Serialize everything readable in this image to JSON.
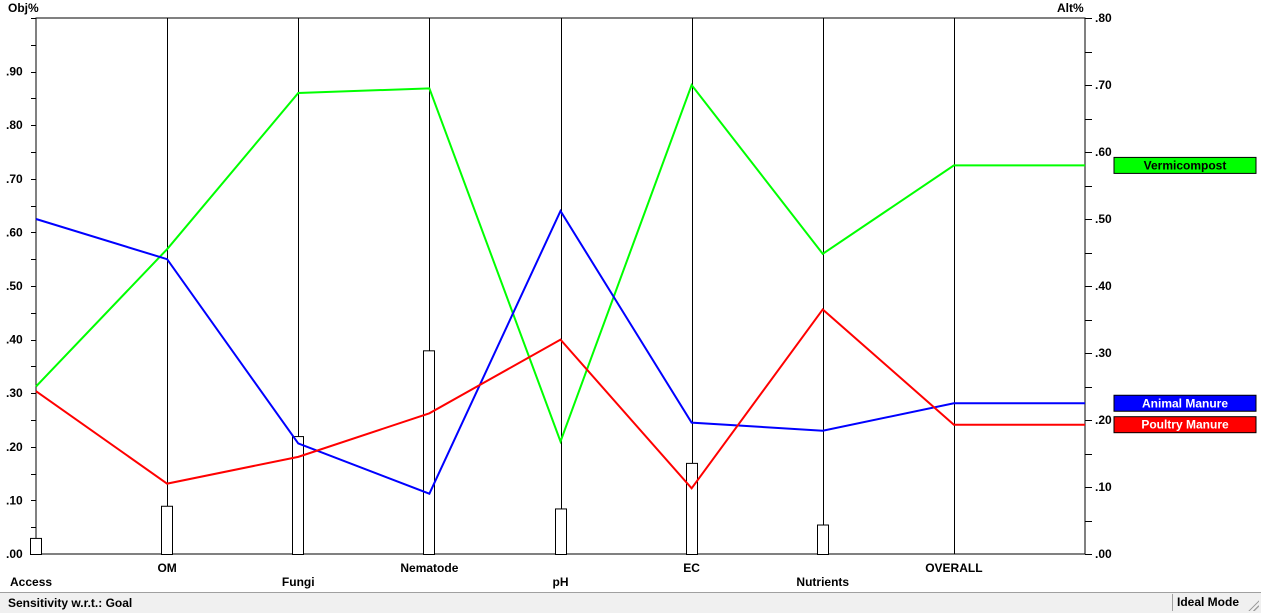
{
  "chart_data": {
    "type": "line",
    "left_axis_label": "Obj%",
    "right_axis_label": "Alt%",
    "left_ticks": [
      ".00",
      ".10",
      ".20",
      ".30",
      ".40",
      ".50",
      ".60",
      ".70",
      ".80",
      ".90"
    ],
    "right_ticks": [
      ".00",
      ".10",
      ".20",
      ".30",
      ".40",
      ".50",
      ".60",
      ".70",
      ".80"
    ],
    "left_ylim": [
      0,
      1.0
    ],
    "right_ylim": [
      0,
      0.8
    ],
    "categories": [
      "Access",
      "OM",
      "Fungi",
      "Nematode",
      "pH",
      "EC",
      "Nutrients",
      "OVERALL"
    ],
    "objective_weights": [
      0.03,
      0.09,
      0.22,
      0.38,
      0.085,
      0.17,
      0.055
    ],
    "series": [
      {
        "name": "Vermicompost",
        "color": "#00ff00",
        "values": [
          0.25,
          0.455,
          0.688,
          0.695,
          0.168,
          0.7,
          0.448,
          0.58
        ]
      },
      {
        "name": "Animal Manure",
        "color": "#0000ff",
        "values": [
          0.5,
          0.44,
          0.165,
          0.09,
          0.512,
          0.196,
          0.184,
          0.225
        ]
      },
      {
        "name": "Poultry Manure",
        "color": "#ff0000",
        "values": [
          0.243,
          0.105,
          0.145,
          0.21,
          0.32,
          0.098,
          0.365,
          0.193
        ]
      }
    ],
    "grid": false
  },
  "status": {
    "left": "Sensitivity w.r.t.: Goal",
    "right": "Ideal Mode"
  }
}
